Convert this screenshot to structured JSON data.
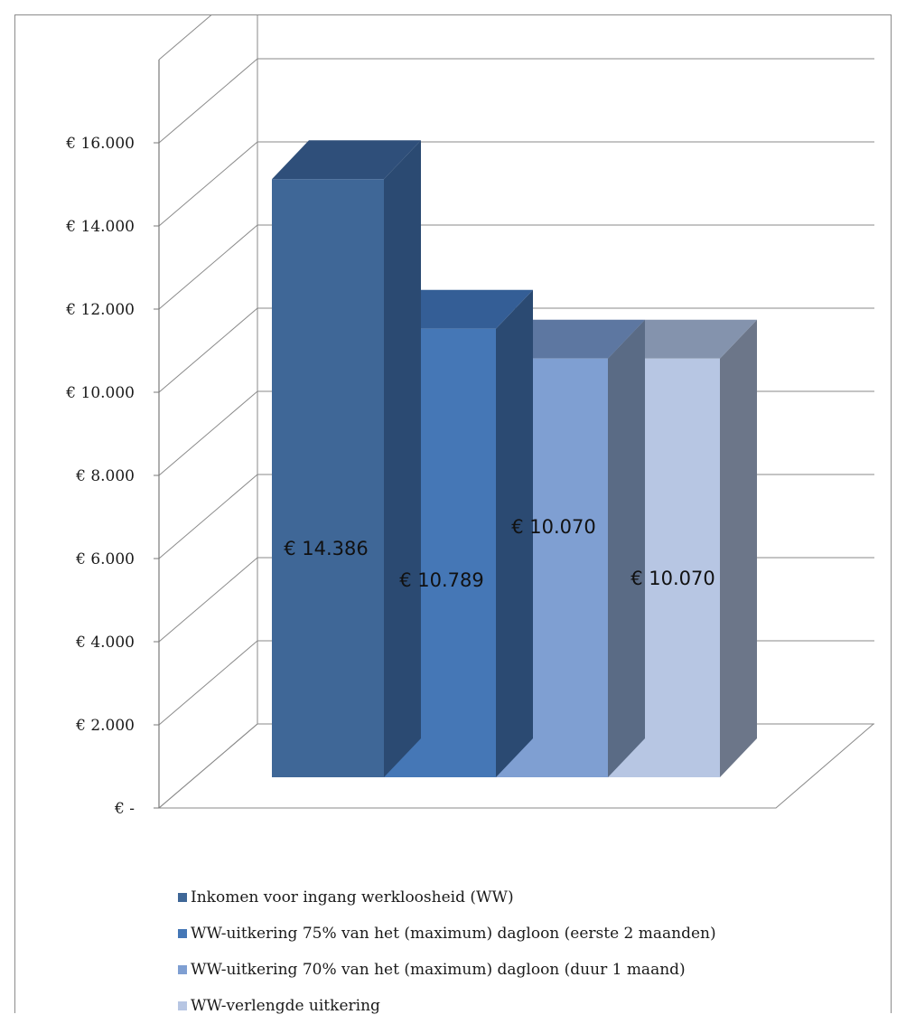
{
  "chart_data": {
    "type": "bar",
    "style": "3d-column",
    "categories": [
      "Inkomen voor ingang werkloosheid (WW)",
      "WW-uitkering 75% van het (maximum) dagloon (eerste 2 maanden)",
      "WW-uitkering 70% van het (maximum) dagloon (duur 1 maand)",
      "WW-verlengde uitkering"
    ],
    "values": [
      14386,
      10789,
      10070,
      10070
    ],
    "data_labels": [
      "€ 14.386",
      "€ 10.789",
      "€ 10.070",
      "€ 10.070"
    ],
    "colors": [
      "#3f6797",
      "#4577b6",
      "#7f9fd2",
      "#b7c6e3"
    ],
    "top_colors": [
      "#2f4f7a",
      "#345e96",
      "#5d77a1",
      "#8493ad"
    ],
    "side_colors": [
      "#2b4a72",
      "#2b4a72",
      "#5a6b85",
      "#6c7689"
    ],
    "ylim": [
      0,
      18000
    ],
    "yticks": [
      0,
      2000,
      4000,
      6000,
      8000,
      10000,
      12000,
      14000,
      16000
    ],
    "ytick_labels": [
      "€ -",
      "€ 2.000",
      "€ 4.000",
      "€ 6.000",
      "€ 8.000",
      "€ 10.000",
      "€ 12.000",
      "€ 14.000",
      "€ 16.000"
    ],
    "grid": true,
    "legend": "bottom",
    "title": "",
    "xlabel": "",
    "ylabel": ""
  }
}
